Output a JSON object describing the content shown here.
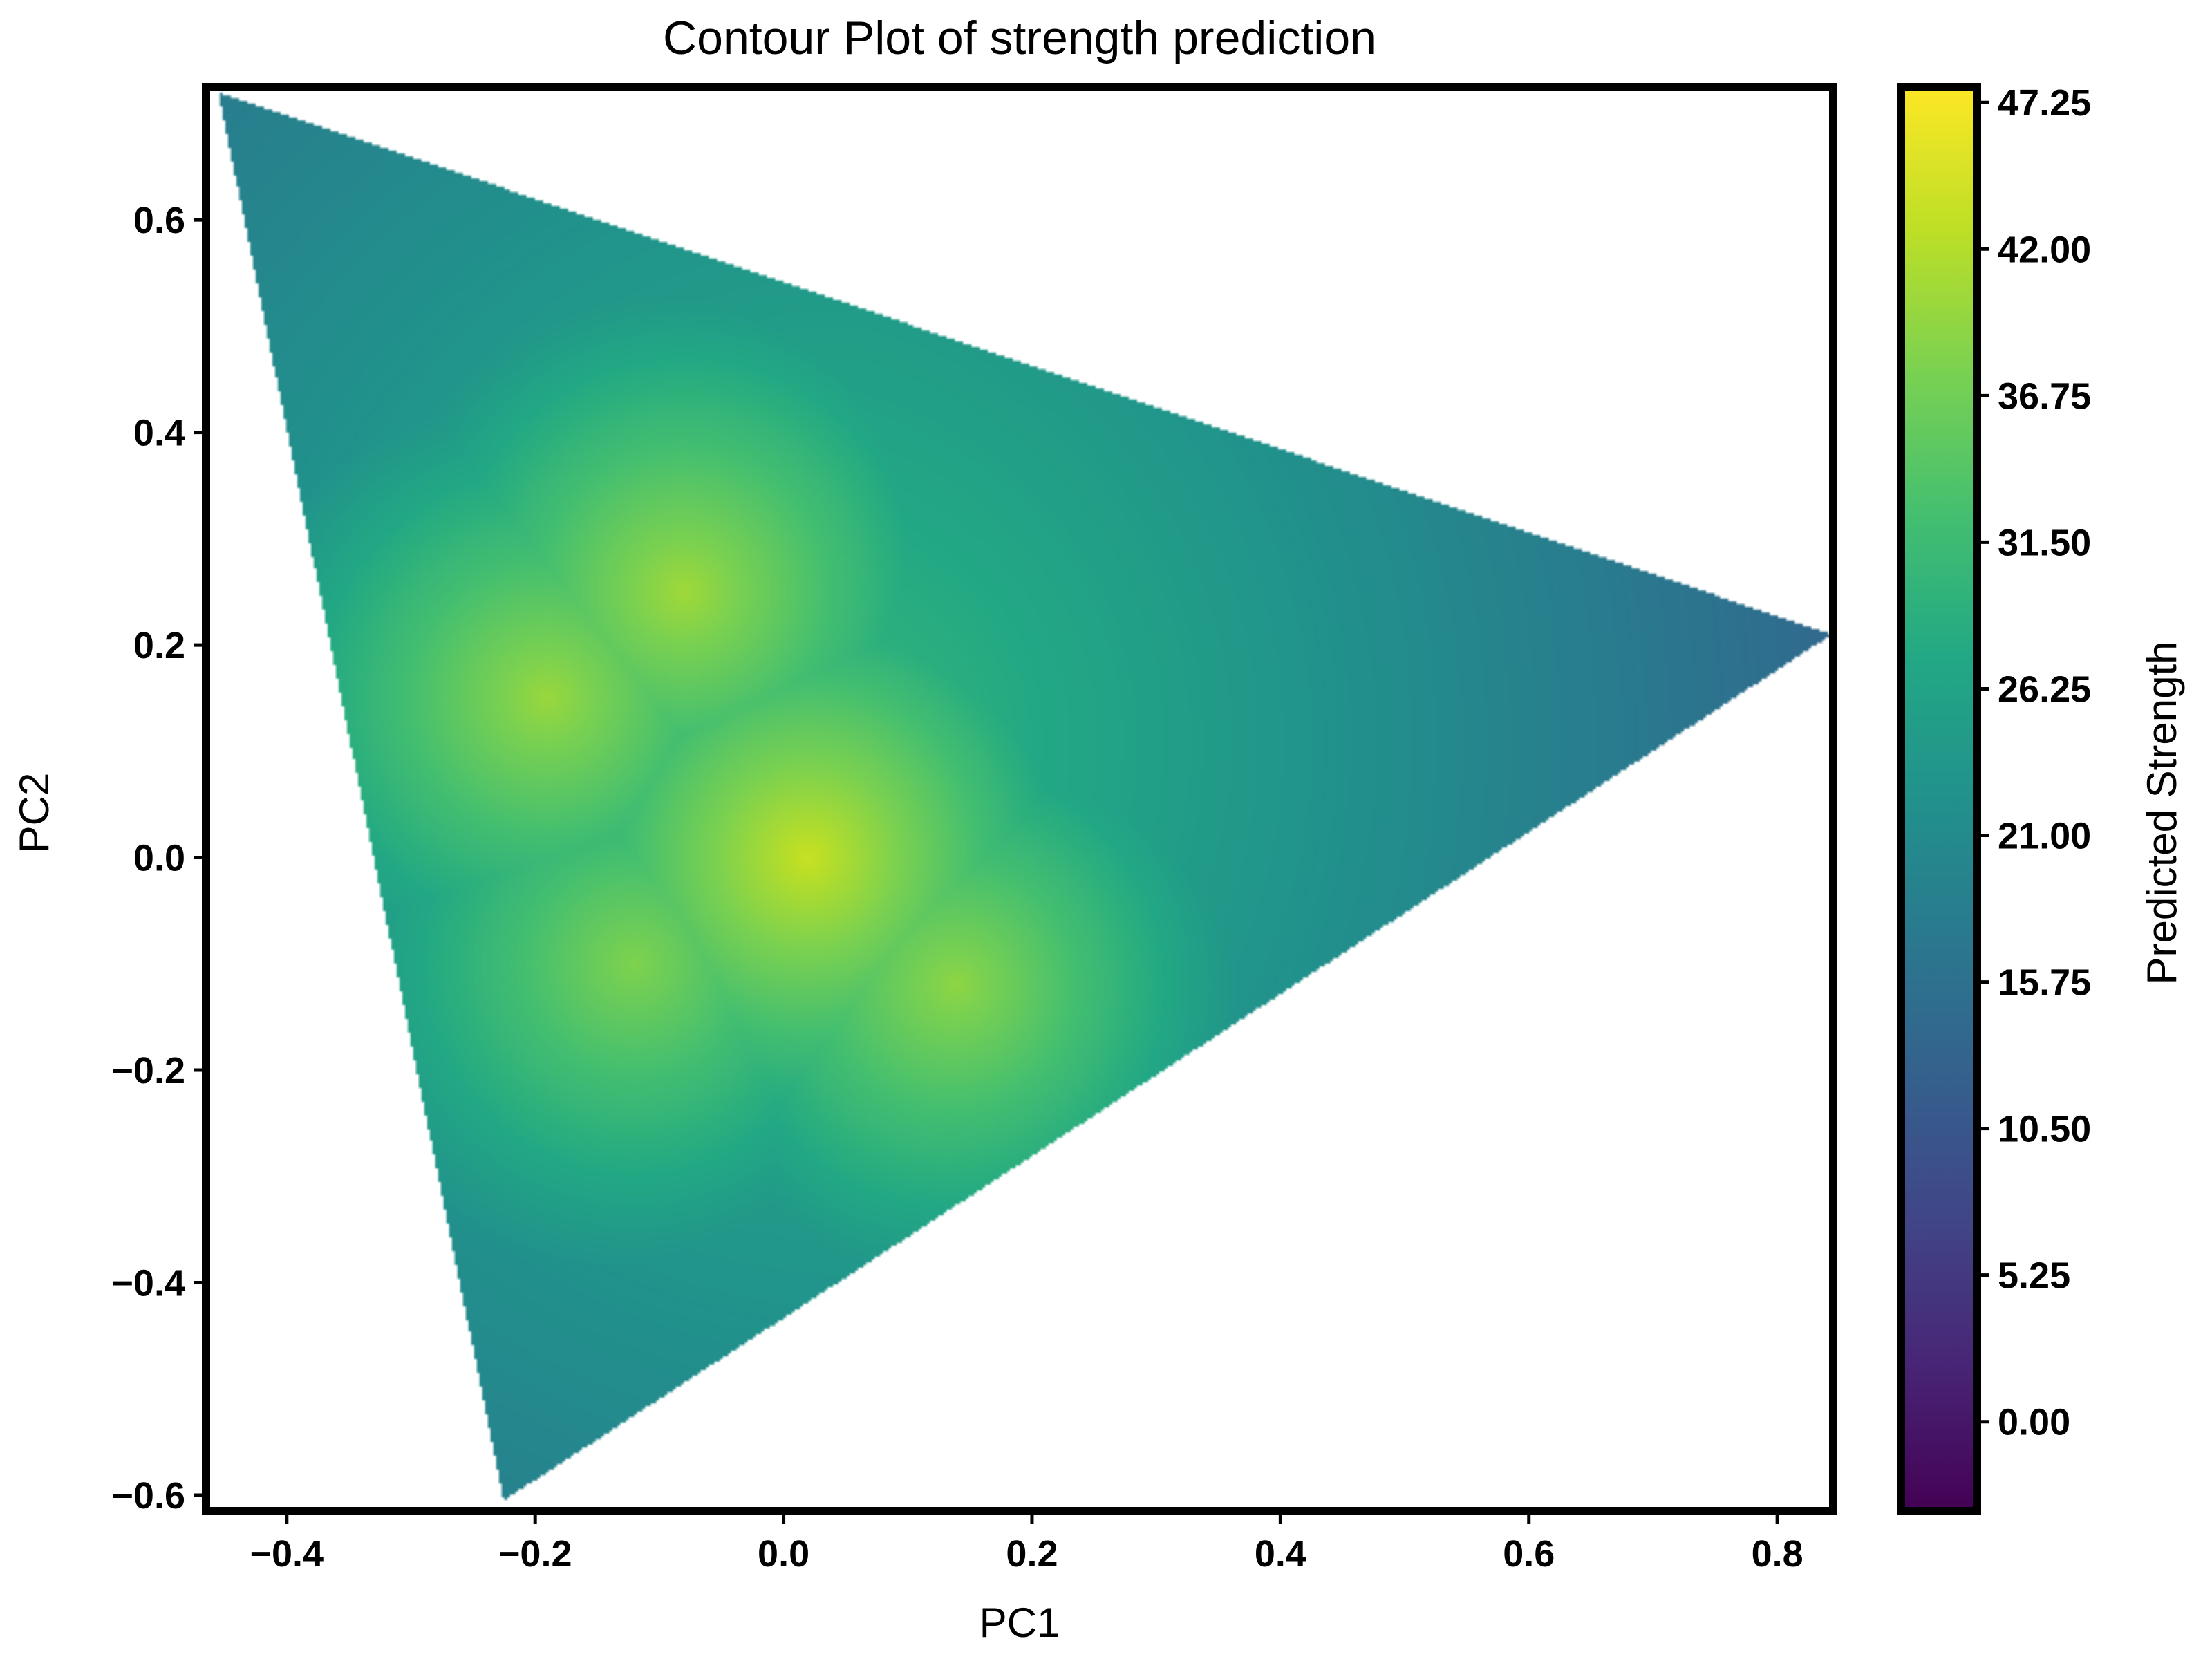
{
  "chart_data": {
    "type": "heatmap",
    "subtype": "filled-contour",
    "title": "Contour Plot of strength prediction",
    "xlabel": "PC1",
    "ylabel": "PC2",
    "xlim": [
      -0.465,
      0.845
    ],
    "ylim": [
      -0.615,
      0.725
    ],
    "x_ticks": [
      -0.4,
      -0.2,
      0.0,
      0.2,
      0.4,
      0.6,
      0.8
    ],
    "x_tick_labels": [
      "−0.4",
      "−0.2",
      "0.0",
      "0.2",
      "0.4",
      "0.6",
      "0.8"
    ],
    "y_ticks": [
      -0.6,
      -0.4,
      -0.2,
      0.0,
      0.2,
      0.4,
      0.6
    ],
    "y_tick_labels": [
      "−0.6",
      "−0.4",
      "−0.2",
      "0.0",
      "0.2",
      "0.4",
      "0.6"
    ],
    "grid": false,
    "colormap": "viridis",
    "colorbar": {
      "label": "Predicted Strength",
      "range": [
        -3.2,
        47.8
      ],
      "ticks": [
        0.0,
        5.25,
        10.5,
        15.75,
        21.0,
        26.25,
        31.5,
        36.75,
        42.0,
        47.25
      ],
      "tick_labels": [
        "0.00",
        "5.25",
        "10.50",
        "15.75",
        "21.00",
        "26.25",
        "31.50",
        "36.75",
        "42.00",
        "47.25"
      ]
    },
    "region_vertices": [
      [
        -0.455,
        0.72
      ],
      [
        0.845,
        0.21
      ],
      [
        -0.225,
        -0.605
      ]
    ],
    "peaks": [
      {
        "x": 0.02,
        "y": 0.0,
        "value": 43.5
      },
      {
        "x": -0.08,
        "y": 0.25,
        "value": 40.5
      },
      {
        "x": -0.19,
        "y": 0.15,
        "value": 40.0
      },
      {
        "x": 0.14,
        "y": -0.12,
        "value": 39.5
      },
      {
        "x": -0.12,
        "y": -0.1,
        "value": 38.0
      }
    ],
    "base_level": 16.5
  }
}
